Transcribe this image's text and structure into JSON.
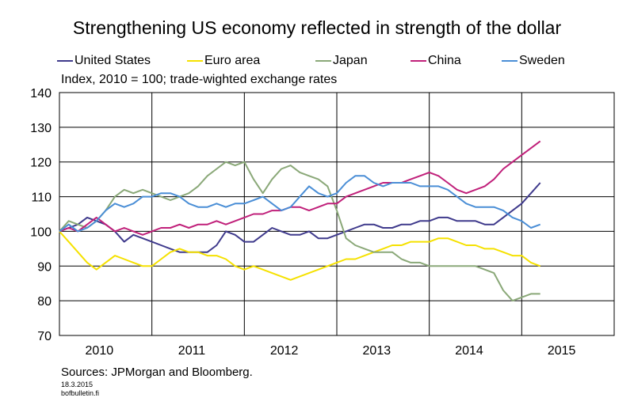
{
  "chart_data": {
    "type": "line",
    "title": "Strengthening US economy reflected in strength of the dollar",
    "subtitle": "Index, 2010 = 100; trade-wighted exchange rates",
    "xlabel": "",
    "ylabel": "",
    "ylim": [
      70,
      140
    ],
    "yticks": [
      "70",
      "80",
      "90",
      "100",
      "110",
      "120",
      "130",
      "140"
    ],
    "xticks": [
      "2010",
      "2011",
      "2012",
      "2013",
      "2014",
      "2015"
    ],
    "xlim": [
      2010.0,
      2016.0
    ],
    "grid": true,
    "legend_position": "top",
    "series": [
      {
        "name": "United States",
        "color": "#3f3a8c",
        "x": [
          2010.0,
          2010.1,
          2010.2,
          2010.3,
          2010.4,
          2010.5,
          2010.6,
          2010.7,
          2010.8,
          2010.9,
          2011.0,
          2011.1,
          2011.2,
          2011.3,
          2011.4,
          2011.5,
          2011.6,
          2011.7,
          2011.8,
          2011.9,
          2012.0,
          2012.1,
          2012.2,
          2012.3,
          2012.4,
          2012.5,
          2012.6,
          2012.7,
          2012.8,
          2012.9,
          2013.0,
          2013.1,
          2013.2,
          2013.3,
          2013.4,
          2013.5,
          2013.6,
          2013.7,
          2013.8,
          2013.9,
          2014.0,
          2014.1,
          2014.2,
          2014.3,
          2014.4,
          2014.5,
          2014.6,
          2014.7,
          2014.8,
          2014.9,
          2015.0,
          2015.1,
          2015.2
        ],
        "values": [
          100,
          101,
          102,
          104,
          103,
          102,
          100,
          97,
          99,
          98,
          97,
          96,
          95,
          94,
          94,
          94,
          94,
          96,
          100,
          99,
          97,
          97,
          99,
          101,
          100,
          99,
          99,
          100,
          98,
          98,
          99,
          100,
          101,
          102,
          102,
          101,
          101,
          102,
          102,
          103,
          103,
          104,
          104,
          103,
          103,
          103,
          102,
          102,
          104,
          106,
          108,
          111,
          114
        ]
      },
      {
        "name": "Euro area",
        "color": "#f5e100",
        "x": [
          2010.0,
          2010.1,
          2010.2,
          2010.3,
          2010.4,
          2010.5,
          2010.6,
          2010.7,
          2010.8,
          2010.9,
          2011.0,
          2011.1,
          2011.2,
          2011.3,
          2011.4,
          2011.5,
          2011.6,
          2011.7,
          2011.8,
          2011.9,
          2012.0,
          2012.1,
          2012.2,
          2012.3,
          2012.4,
          2012.5,
          2012.6,
          2012.7,
          2012.8,
          2012.9,
          2013.0,
          2013.1,
          2013.2,
          2013.3,
          2013.4,
          2013.5,
          2013.6,
          2013.7,
          2013.8,
          2013.9,
          2014.0,
          2014.1,
          2014.2,
          2014.3,
          2014.4,
          2014.5,
          2014.6,
          2014.7,
          2014.8,
          2014.9,
          2015.0,
          2015.1,
          2015.2
        ],
        "values": [
          100,
          97,
          94,
          91,
          89,
          91,
          93,
          92,
          91,
          90,
          90,
          92,
          94,
          95,
          94,
          94,
          93,
          93,
          92,
          90,
          89,
          90,
          89,
          88,
          87,
          86,
          87,
          88,
          89,
          90,
          91,
          92,
          92,
          93,
          94,
          95,
          96,
          96,
          97,
          97,
          97,
          98,
          98,
          97,
          96,
          96,
          95,
          95,
          94,
          93,
          93,
          91,
          90
        ]
      },
      {
        "name": "Japan",
        "color": "#8aa878",
        "x": [
          2010.0,
          2010.1,
          2010.2,
          2010.3,
          2010.4,
          2010.5,
          2010.6,
          2010.7,
          2010.8,
          2010.9,
          2011.0,
          2011.1,
          2011.2,
          2011.3,
          2011.4,
          2011.5,
          2011.6,
          2011.7,
          2011.8,
          2011.9,
          2012.0,
          2012.1,
          2012.2,
          2012.3,
          2012.4,
          2012.5,
          2012.6,
          2012.7,
          2012.8,
          2012.9,
          2013.0,
          2013.1,
          2013.2,
          2013.3,
          2013.4,
          2013.5,
          2013.6,
          2013.7,
          2013.8,
          2013.9,
          2014.0,
          2014.1,
          2014.2,
          2014.3,
          2014.4,
          2014.5,
          2014.6,
          2014.7,
          2014.8,
          2014.9,
          2015.0,
          2015.1,
          2015.2
        ],
        "values": [
          100,
          103,
          102,
          101,
          103,
          106,
          110,
          112,
          111,
          112,
          111,
          110,
          109,
          110,
          111,
          113,
          116,
          118,
          120,
          119,
          120,
          115,
          111,
          115,
          118,
          119,
          117,
          116,
          115,
          113,
          106,
          98,
          96,
          95,
          94,
          94,
          94,
          92,
          91,
          91,
          90,
          90,
          90,
          90,
          90,
          90,
          89,
          88,
          83,
          80,
          81,
          82,
          82
        ]
      },
      {
        "name": "China",
        "color": "#c0207a",
        "x": [
          2010.0,
          2010.1,
          2010.2,
          2010.3,
          2010.4,
          2010.5,
          2010.6,
          2010.7,
          2010.8,
          2010.9,
          2011.0,
          2011.1,
          2011.2,
          2011.3,
          2011.4,
          2011.5,
          2011.6,
          2011.7,
          2011.8,
          2011.9,
          2012.0,
          2012.1,
          2012.2,
          2012.3,
          2012.4,
          2012.5,
          2012.6,
          2012.7,
          2012.8,
          2012.9,
          2013.0,
          2013.1,
          2013.2,
          2013.3,
          2013.4,
          2013.5,
          2013.6,
          2013.7,
          2013.8,
          2013.9,
          2014.0,
          2014.1,
          2014.2,
          2014.3,
          2014.4,
          2014.5,
          2014.6,
          2014.7,
          2014.8,
          2014.9,
          2015.0,
          2015.1,
          2015.2
        ],
        "values": [
          100,
          101,
          100,
          102,
          104,
          102,
          100,
          101,
          100,
          99,
          100,
          101,
          101,
          102,
          101,
          102,
          102,
          103,
          102,
          103,
          104,
          105,
          105,
          106,
          106,
          107,
          107,
          106,
          107,
          108,
          108,
          110,
          111,
          112,
          113,
          114,
          114,
          114,
          115,
          116,
          117,
          116,
          114,
          112,
          111,
          112,
          113,
          115,
          118,
          120,
          122,
          124,
          126
        ]
      },
      {
        "name": "Sweden",
        "color": "#4a8ed6",
        "x": [
          2010.0,
          2010.1,
          2010.2,
          2010.3,
          2010.4,
          2010.5,
          2010.6,
          2010.7,
          2010.8,
          2010.9,
          2011.0,
          2011.1,
          2011.2,
          2011.3,
          2011.4,
          2011.5,
          2011.6,
          2011.7,
          2011.8,
          2011.9,
          2012.0,
          2012.1,
          2012.2,
          2012.3,
          2012.4,
          2012.5,
          2012.6,
          2012.7,
          2012.8,
          2012.9,
          2013.0,
          2013.1,
          2013.2,
          2013.3,
          2013.4,
          2013.5,
          2013.6,
          2013.7,
          2013.8,
          2013.9,
          2014.0,
          2014.1,
          2014.2,
          2014.3,
          2014.4,
          2014.5,
          2014.6,
          2014.7,
          2014.8,
          2014.9,
          2015.0,
          2015.1,
          2015.2
        ],
        "values": [
          100,
          102,
          100,
          101,
          103,
          106,
          108,
          107,
          108,
          110,
          110,
          111,
          111,
          110,
          108,
          107,
          107,
          108,
          107,
          108,
          108,
          109,
          110,
          108,
          106,
          107,
          110,
          113,
          111,
          110,
          111,
          114,
          116,
          116,
          114,
          113,
          114,
          114,
          114,
          113,
          113,
          113,
          112,
          110,
          108,
          107,
          107,
          107,
          106,
          104,
          103,
          101,
          102
        ]
      }
    ]
  },
  "footer": {
    "sources": "Sources: JPMorgan and Bloomberg.",
    "date": "18.3.2015",
    "site": "bofbulletin.fi"
  }
}
